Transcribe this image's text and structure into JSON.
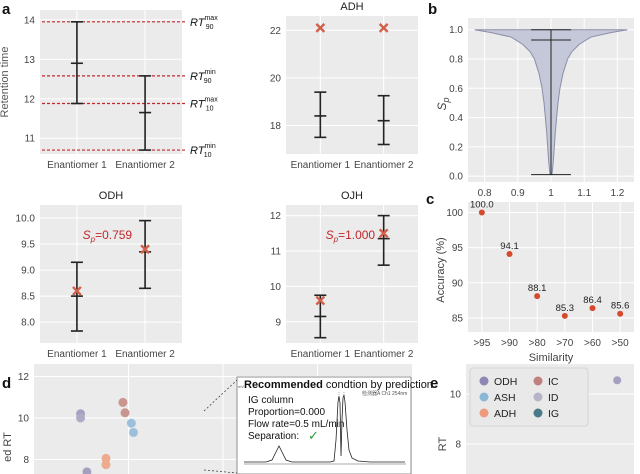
{
  "panel_letters": {
    "a": "a",
    "b": "b",
    "c": "c",
    "d": "d",
    "e": "e"
  },
  "colors": {
    "panel_bg": "#ebebeb",
    "grid": "#ffffff",
    "errorbar": "#222222",
    "dashed": "#c0282c",
    "cross": "#d2604a",
    "red_text": "#c0282c",
    "violin_fill": "#c5c8d8",
    "violin_edge": "#8a8fa8",
    "dot": "#d64a2e",
    "check": "#2a9a3a"
  },
  "chart_data": [
    {
      "id": "a-main",
      "type": "errorbar",
      "title": "",
      "ylabel": "Retention time",
      "ylim": [
        10.6,
        14.25
      ],
      "yticks": [
        11,
        12,
        13,
        14
      ],
      "categories": [
        "Enantiomer 1",
        "Enantiomer 2"
      ],
      "series": [
        {
          "category": "Enantiomer 1",
          "low": 11.88,
          "mid": 12.9,
          "high": 13.95
        },
        {
          "category": "Enantiomer 2",
          "low": 10.7,
          "mid": 11.65,
          "high": 12.58
        }
      ],
      "reference_lines": [
        {
          "y": 13.95,
          "label_base": "RT",
          "label_sup": "max",
          "label_sub": "90"
        },
        {
          "y": 12.58,
          "label_base": "RT",
          "label_sup": "min",
          "label_sub": "90"
        },
        {
          "y": 11.88,
          "label_base": "RT",
          "label_sup": "max",
          "label_sub": "10"
        },
        {
          "y": 10.7,
          "label_base": "RT",
          "label_sup": "min",
          "label_sub": "10"
        }
      ]
    },
    {
      "id": "adh",
      "type": "errorbar",
      "title": "ADH",
      "ylim": [
        16.8,
        22.6
      ],
      "yticks": [
        18,
        20,
        22
      ],
      "categories": [
        "Enantiomer 1",
        "Enantiomer 2"
      ],
      "series": [
        {
          "category": "Enantiomer 1",
          "low": 17.5,
          "mid": 18.4,
          "high": 19.4,
          "cross": 22.1
        },
        {
          "category": "Enantiomer 2",
          "low": 17.2,
          "mid": 18.2,
          "high": 19.25,
          "cross": 22.1
        }
      ]
    },
    {
      "id": "odh",
      "type": "errorbar",
      "title": "ODH",
      "ylim": [
        7.6,
        10.25
      ],
      "yticks": [
        8.0,
        8.5,
        9.0,
        9.5,
        10.0
      ],
      "ytick_labels": [
        "8.0",
        "8.5",
        "9.0",
        "9.5",
        "10.0"
      ],
      "categories": [
        "Enantiomer 1",
        "Enantiomer 2"
      ],
      "series": [
        {
          "category": "Enantiomer 1",
          "low": 7.83,
          "mid": 8.5,
          "high": 9.15,
          "cross": 8.6
        },
        {
          "category": "Enantiomer 2",
          "low": 8.65,
          "mid": 9.35,
          "high": 9.95,
          "cross": 9.4
        }
      ],
      "annotation": {
        "S": "S",
        "sub": "p",
        "text": "=0.759"
      }
    },
    {
      "id": "ojh",
      "type": "errorbar",
      "title": "OJH",
      "ylim": [
        8.4,
        12.3
      ],
      "yticks": [
        9,
        10,
        11,
        12
      ],
      "categories": [
        "Enantiomer 1",
        "Enantiomer 2"
      ],
      "series": [
        {
          "category": "Enantiomer 1",
          "low": 8.55,
          "mid": 9.15,
          "high": 9.75,
          "cross": 9.6
        },
        {
          "category": "Enantiomer 2",
          "low": 10.6,
          "mid": 11.35,
          "high": 12.0,
          "cross": 11.5
        }
      ],
      "annotation": {
        "S": "S",
        "sub": "p",
        "text": "=1.000"
      }
    },
    {
      "id": "b-violin",
      "type": "violin",
      "ylabel_base": "S",
      "ylabel_sub": "p",
      "xlim": [
        0.75,
        1.25
      ],
      "xticks": [
        0.8,
        0.9,
        1.0,
        1.1,
        1.2
      ],
      "ylim": [
        -0.04,
        1.08
      ],
      "yticks": [
        0.0,
        0.2,
        0.4,
        0.6,
        0.8,
        1.0
      ],
      "ytick_labels": [
        "0.0",
        "0.2",
        "0.4",
        "0.6",
        "0.8",
        "1.0"
      ],
      "min": 0.01,
      "median": 0.93,
      "max": 1.0
    },
    {
      "id": "c-scatter",
      "type": "scatter",
      "xlabel": "Similarity",
      "ylabel": "Accuracy (%)",
      "ylim": [
        83,
        101.5
      ],
      "yticks": [
        85,
        90,
        95,
        100
      ],
      "categories": [
        ">95",
        ">90",
        ">80",
        ">70",
        ">60",
        ">50"
      ],
      "values": [
        100.0,
        94.1,
        88.1,
        85.3,
        86.4,
        85.6
      ],
      "value_labels": [
        "100.0",
        "94.1",
        "88.1",
        "85.3",
        "86.4",
        "85.6"
      ]
    },
    {
      "id": "d-scatter",
      "type": "scatter",
      "ylabel": "ed RT",
      "ylim": [
        7.3,
        12.6
      ],
      "yticks": [
        8,
        10,
        12
      ],
      "points": [
        {
          "x": 0.22,
          "y": 10.2,
          "color": "#a6a0c0"
        },
        {
          "x": 0.22,
          "y": 10.0,
          "color": "#b0aac6"
        },
        {
          "x": 0.42,
          "y": 10.75,
          "color": "#c8968e"
        },
        {
          "x": 0.43,
          "y": 10.25,
          "color": "#c8968e"
        },
        {
          "x": 0.46,
          "y": 9.75,
          "color": "#9cc0dc"
        },
        {
          "x": 0.47,
          "y": 9.3,
          "color": "#9cc0dc"
        },
        {
          "x": 0.34,
          "y": 8.05,
          "color": "#eeaa8e"
        },
        {
          "x": 0.34,
          "y": 7.75,
          "color": "#eeaa8e"
        },
        {
          "x": 0.98,
          "y": 10.55,
          "color": "#4f7e8c"
        },
        {
          "x": 0.98,
          "y": 7.4,
          "color": "#4f7e8c"
        },
        {
          "x": 0.25,
          "y": 7.4,
          "color": "#a6a0c0"
        }
      ]
    },
    {
      "id": "e-scatter",
      "type": "scatter",
      "ylabel": "RT",
      "ylim": [
        6.8,
        11.2
      ],
      "yticks": [
        6,
        8,
        10
      ],
      "points": [
        {
          "x": 0.9,
          "y": 10.55,
          "color": "#a6a0c0"
        }
      ],
      "legend": [
        {
          "label": "ODH",
          "color": "#8f86b5"
        },
        {
          "label": "IC",
          "color": "#c08080"
        },
        {
          "label": "ASH",
          "color": "#8cb8d8"
        },
        {
          "label": "ID",
          "color": "#b8b4c8"
        },
        {
          "label": "ADH",
          "color": "#ee9a7c"
        },
        {
          "label": "IG",
          "color": "#4a7a88"
        }
      ]
    }
  ],
  "inset": {
    "title_bold": "Recommended",
    "title_rest": " condtion by prediction",
    "lines": [
      "IG column",
      "Proportion=0.000",
      "Flow rate=0.5 mL/min",
      "Separation:"
    ],
    "check_mark": "✓",
    "corner_text": "检测器A Ch1 254nm",
    "side_tick": "mV"
  }
}
